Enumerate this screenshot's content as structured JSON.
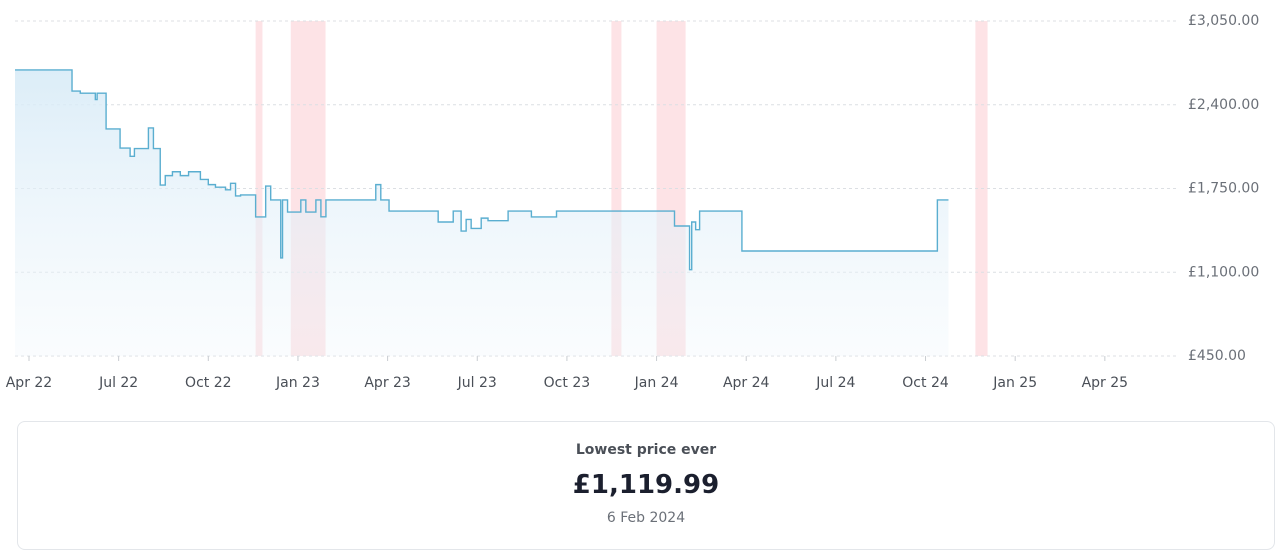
{
  "chart_data": {
    "type": "line",
    "step": true,
    "x": [
      2022.211,
      2022.37,
      2022.393,
      2022.435,
      2022.44,
      2022.465,
      2022.504,
      2022.532,
      2022.544,
      2022.583,
      2022.597,
      2022.616,
      2022.63,
      2022.65,
      2022.672,
      2022.695,
      2022.728,
      2022.75,
      2022.77,
      2022.798,
      2022.812,
      2022.826,
      2022.84,
      2022.882,
      2022.91,
      2022.924,
      2022.952,
      2022.957,
      2022.971,
      2023.008,
      2023.022,
      2023.05,
      2023.064,
      2023.078,
      2023.217,
      2023.231,
      2023.254,
      2023.391,
      2023.433,
      2023.455,
      2023.469,
      2023.483,
      2023.511,
      2023.53,
      2023.586,
      2023.651,
      2023.721,
      2024.036,
      2024.05,
      2024.092,
      2024.098,
      2024.109,
      2024.12,
      2024.238,
      2024.783,
      2024.814
    ],
    "values": [
      2670,
      2506,
      2490,
      2440,
      2490,
      2212,
      2064,
      2000,
      2060,
      2220,
      2060,
      1777,
      1850,
      1880,
      1850,
      1880,
      1820,
      1780,
      1760,
      1740,
      1790,
      1692,
      1700,
      1529,
      1769,
      1661,
      1211,
      1661,
      1567,
      1661,
      1567,
      1661,
      1530,
      1661,
      1780,
      1661,
      1575,
      1490,
      1575,
      1420,
      1510,
      1440,
      1520,
      1500,
      1575,
      1529,
      1575,
      1575,
      1459,
      1119.99,
      1490,
      1430,
      1575,
      1265,
      1661,
      1661
    ],
    "color": "#5aaed0",
    "bands": [
      [
        2022.882,
        2022.901
      ],
      [
        2022.98,
        2023.077
      ],
      [
        2023.874,
        2023.902
      ],
      [
        2024.0,
        2024.081
      ],
      [
        2024.889,
        2024.923
      ]
    ],
    "band_color": "#fde3e6",
    "xlim": [
      2022.211,
      2025.454
    ],
    "xticks": [
      {
        "value": 2022.25,
        "label": "Apr 22"
      },
      {
        "value": 2022.5,
        "label": "Jul 22"
      },
      {
        "value": 2022.75,
        "label": "Oct 22"
      },
      {
        "value": 2023.0,
        "label": "Jan 23"
      },
      {
        "value": 2023.25,
        "label": "Apr 23"
      },
      {
        "value": 2023.5,
        "label": "Jul 23"
      },
      {
        "value": 2023.75,
        "label": "Oct 23"
      },
      {
        "value": 2024.0,
        "label": "Jan 24"
      },
      {
        "value": 2024.25,
        "label": "Apr 24"
      },
      {
        "value": 2024.5,
        "label": "Jul 24"
      },
      {
        "value": 2024.75,
        "label": "Oct 24"
      },
      {
        "value": 2025.0,
        "label": "Jan 25"
      },
      {
        "value": 2025.25,
        "label": "Apr 25"
      }
    ],
    "ylim": [
      450,
      3050
    ],
    "yticks": [
      {
        "value": 450,
        "label": "£450.00"
      },
      {
        "value": 1100,
        "label": "£1,100.00"
      },
      {
        "value": 1750,
        "label": "£1,750.00"
      },
      {
        "value": 2400,
        "label": "£2,400.00"
      },
      {
        "value": 3050,
        "label": "£3,050.00"
      }
    ],
    "grid": true
  },
  "lowest_price": {
    "label": "Lowest price ever",
    "price": "£1,119.99",
    "date": "6 Feb 2024"
  }
}
